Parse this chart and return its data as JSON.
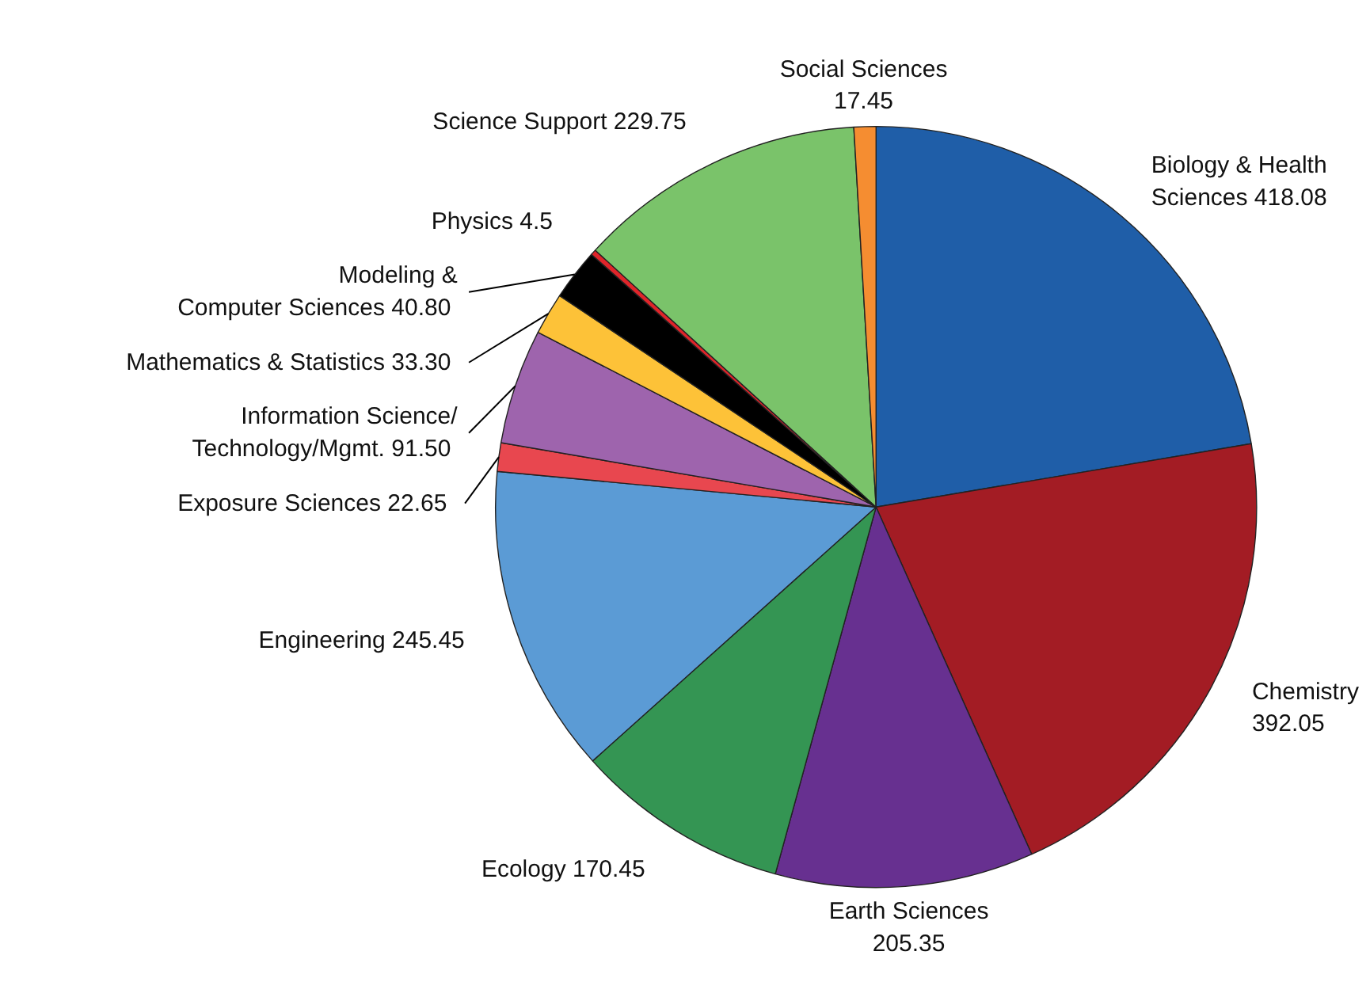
{
  "chart_data": {
    "type": "pie",
    "categories": [
      "Biology & Health Sciences",
      "Chemistry",
      "Earth Sciences",
      "Ecology",
      "Engineering",
      "Exposure Sciences",
      "Information Science/ Technology/Mgmt.",
      "Mathematics & Statistics",
      "Modeling & Computer Sciences",
      "Physics",
      "Science Support",
      "Social Sciences"
    ],
    "values": [
      418.08,
      392.05,
      205.35,
      170.45,
      245.45,
      22.65,
      91.5,
      33.3,
      40.8,
      4.5,
      229.75,
      17.45
    ],
    "value_labels": [
      "418.08",
      "392.05",
      "205.35",
      "170.45",
      "245.45",
      "22.65",
      "91.50",
      "33.30",
      "40.80",
      "4.5",
      "229.75",
      "17.45"
    ],
    "colors": [
      "#1f5ea8",
      "#a31c24",
      "#673090",
      "#349553",
      "#5b9bd5",
      "#e8474f",
      "#9e64ad",
      "#fdc238",
      "#000000",
      "#e0252a",
      "#7ac36a",
      "#f58d31"
    ]
  }
}
